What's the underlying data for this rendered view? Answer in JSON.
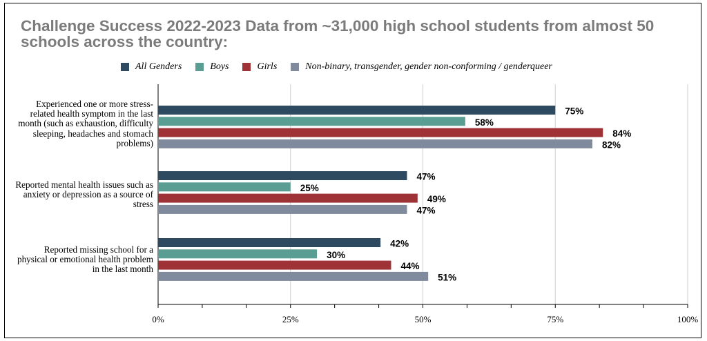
{
  "chart_data": {
    "type": "bar",
    "orientation": "horizontal",
    "title": "Challenge Success 2022-2023 Data from ~31,000 high school students from almost 50 schools across the country:",
    "categories": [
      "Experienced one or more stress-related health symptom in the last month (such as exhaustion, difficulty sleeping, headaches and stomach problems)",
      "Reported mental health issues such as anxiety or depression as a source of stress",
      "Reported missing school for a physical or emotional health problem in the last month"
    ],
    "series": [
      {
        "name": "All Genders",
        "color": "#2e4a61",
        "values": [
          75,
          47,
          42
        ],
        "labels": [
          "75%",
          "47%",
          "42%"
        ]
      },
      {
        "name": "Boys",
        "color": "#5a9e93",
        "values": [
          58,
          25,
          30
        ],
        "labels": [
          "58%",
          "25%",
          "30%"
        ]
      },
      {
        "name": "Girls",
        "color": "#9e3236",
        "values": [
          84,
          49,
          44
        ],
        "labels": [
          "84%",
          "49%",
          "44%"
        ]
      },
      {
        "name": "Non-binary, transgender, gender non-conforming / genderqueer",
        "color": "#7f8a9d",
        "values": [
          82,
          47,
          51
        ],
        "labels": [
          "82%",
          "47%",
          "51%"
        ]
      }
    ],
    "xlim": [
      0,
      100
    ],
    "xticks": [
      "0%",
      "25%",
      "50%",
      "75%",
      "100%"
    ],
    "grid": true,
    "legend": "top"
  }
}
